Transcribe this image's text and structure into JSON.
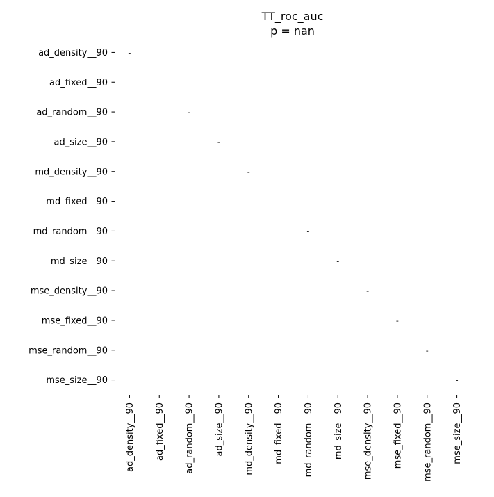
{
  "chart_data": {
    "type": "heatmap",
    "title": "TT_roc_auc",
    "subtitle": "p = nan",
    "xlabel": "",
    "ylabel": "",
    "rows": [
      "ad_density__90",
      "ad_fixed__90",
      "ad_random__90",
      "ad_size__90",
      "md_density__90",
      "md_fixed__90",
      "md_random__90",
      "md_size__90",
      "mse_density__90",
      "mse_fixed__90",
      "mse_random__90",
      "mse_size__90"
    ],
    "columns": [
      "ad_density__90",
      "ad_fixed__90",
      "ad_random__90",
      "ad_size__90",
      "md_density__90",
      "md_fixed__90",
      "md_random__90",
      "md_size__90",
      "mse_density__90",
      "mse_fixed__90",
      "mse_random__90",
      "mse_size__90"
    ],
    "values": "all NaN (blank cells); only the diagonal cells carry annotation '-'",
    "diagonal_annotation": "-",
    "colorbar": false,
    "grid": false,
    "background": "#ffffff"
  }
}
